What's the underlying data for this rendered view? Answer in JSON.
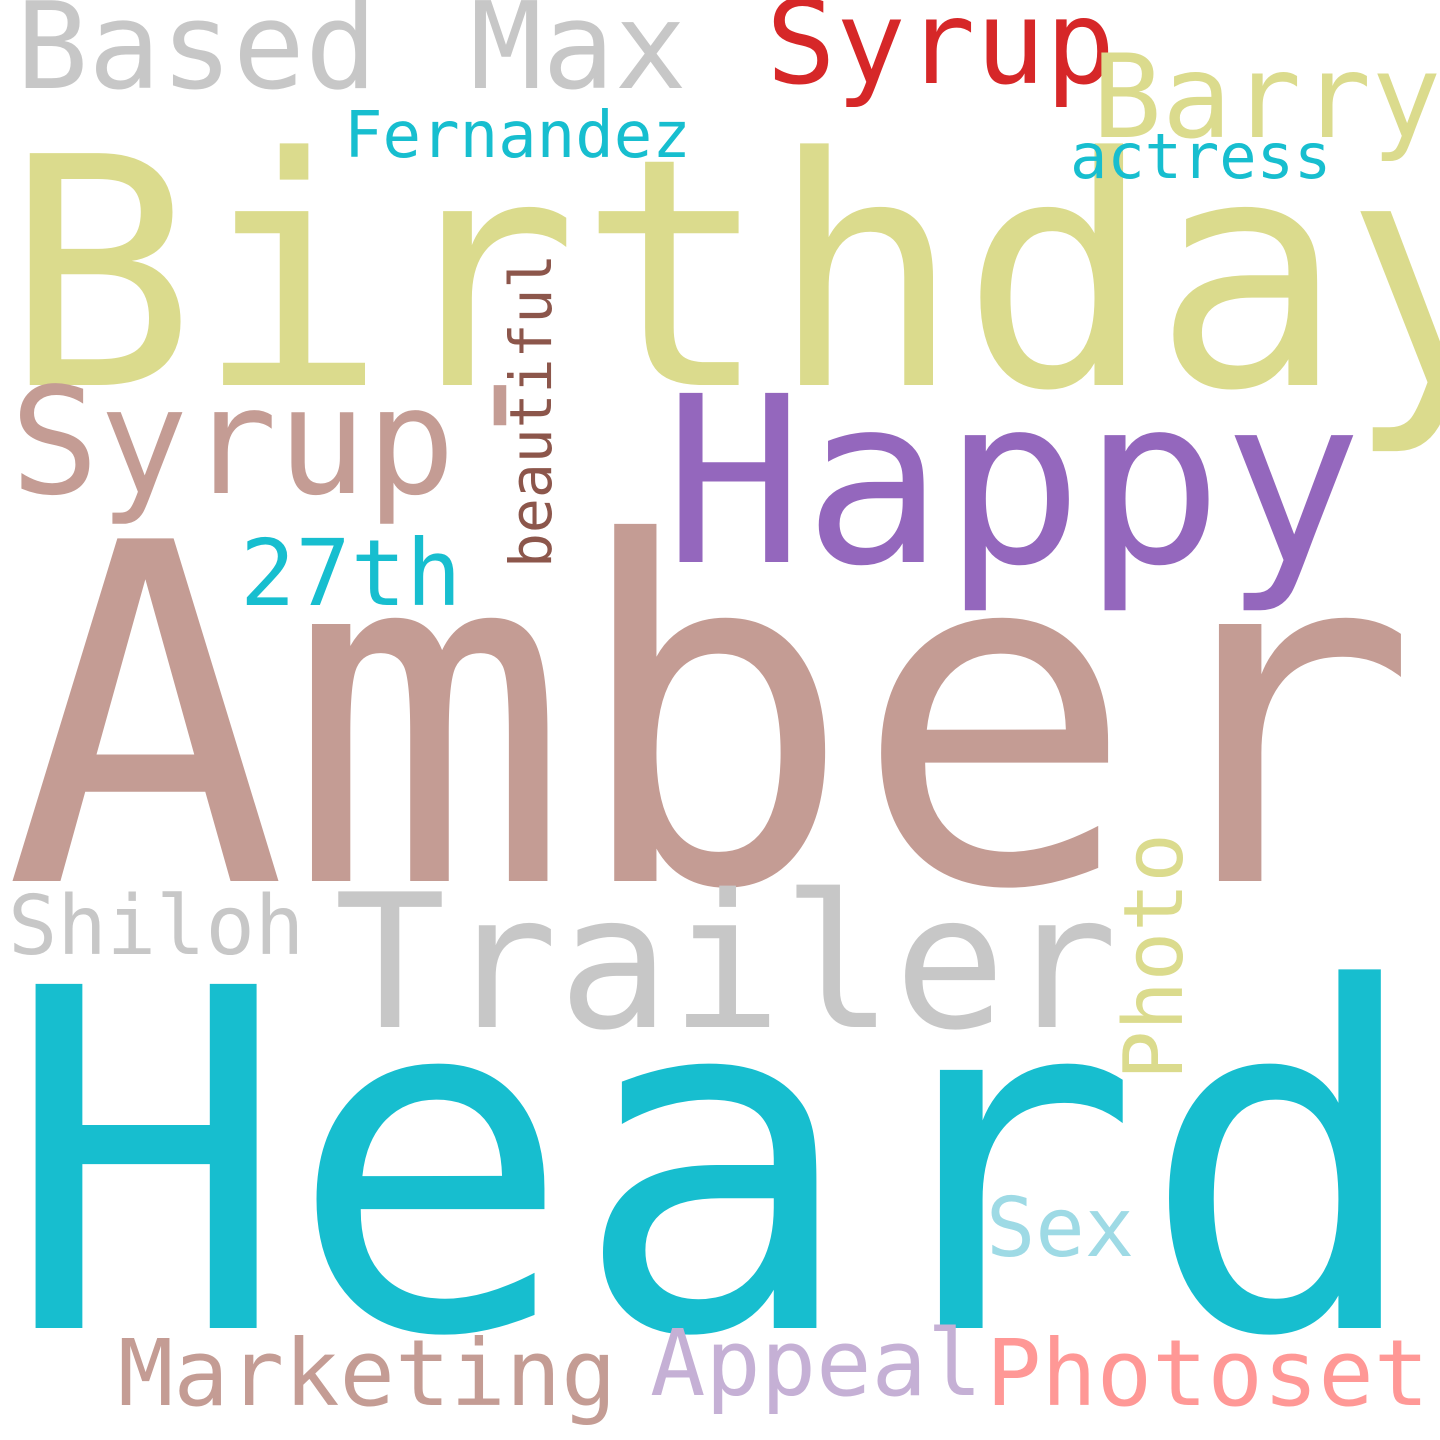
{
  "wordcloud": {
    "background": "#ffffff",
    "words": {
      "birthday": {
        "text": "Birthday",
        "color": "#dbdb8d"
      },
      "amber": {
        "text": "Amber",
        "color": "#c49c94"
      },
      "heard": {
        "text": "Heard",
        "color": "#17becf"
      },
      "happy": {
        "text": "Happy",
        "color": "#9467bd"
      },
      "trailer": {
        "text": "Trailer",
        "color": "#c7c7c7"
      },
      "syrup_q": {
        "text": "Syrup'",
        "color": "#c49c94"
      },
      "based": {
        "text": "Based",
        "color": "#c7c7c7"
      },
      "max": {
        "text": "Max",
        "color": "#c7c7c7"
      },
      "syrup_red": {
        "text": "Syrup",
        "color": "#d62728"
      },
      "barry": {
        "text": "Barry",
        "color": "#dbdb8d"
      },
      "fernandez": {
        "text": "Fernandez",
        "color": "#17becf"
      },
      "actress": {
        "text": "actress",
        "color": "#17becf"
      },
      "twentyseventh": {
        "text": "27th",
        "color": "#17becf"
      },
      "shiloh": {
        "text": "Shiloh",
        "color": "#c7c7c7"
      },
      "sex": {
        "text": "Sex",
        "color": "#9edae5"
      },
      "marketing": {
        "text": "Marketing",
        "color": "#c49c94"
      },
      "appeal": {
        "text": "Appeal",
        "color": "#c5b0d5"
      },
      "photoset": {
        "text": "Photoset",
        "color": "#ff9896"
      },
      "beautiful": {
        "text": "beautiful",
        "color": "#8c564b"
      },
      "photo": {
        "text": "Photo",
        "color": "#dbdb8d"
      }
    }
  }
}
